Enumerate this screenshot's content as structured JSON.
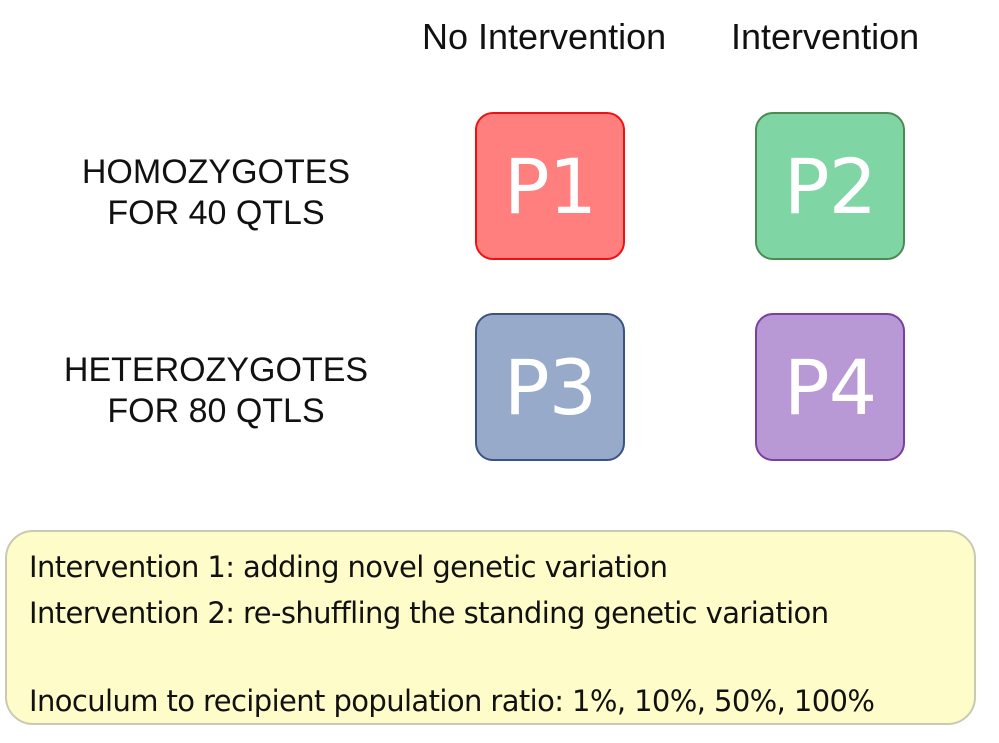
{
  "columns": {
    "no_intervention": "No Intervention",
    "intervention": "Intervention"
  },
  "rows": {
    "homozygotes": {
      "line1": "HOMOZYGOTES",
      "line2": "FOR 40 QTLS"
    },
    "heterozygotes": {
      "line1": "HETEROZYGOTES",
      "line2": "FOR 80 QTLS"
    }
  },
  "populations": {
    "p1": {
      "label": "P1",
      "fill": "#ff7f7f",
      "border": "#ee1111"
    },
    "p2": {
      "label": "P2",
      "fill": "#7fd6a4",
      "border": "#4d8a52"
    },
    "p3": {
      "label": "P3",
      "fill": "#97aaca",
      "border": "#3b5285"
    },
    "p4": {
      "label": "P4",
      "fill": "#b999d5",
      "border": "#7a3f9f"
    }
  },
  "notes": {
    "intervention1": "Intervention 1: adding novel genetic variation",
    "intervention2": "Intervention 2: re-shuffling the standing genetic variation",
    "ratio": "Inoculum to recipient population ratio: 1%, 10%, 50%, 100%",
    "background": "#fefdc9"
  }
}
